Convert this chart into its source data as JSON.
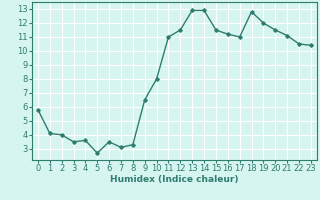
{
  "x": [
    0,
    1,
    2,
    3,
    4,
    5,
    6,
    7,
    8,
    9,
    10,
    11,
    12,
    13,
    14,
    15,
    16,
    17,
    18,
    19,
    20,
    21,
    22,
    23
  ],
  "y": [
    5.8,
    4.1,
    4.0,
    3.5,
    3.6,
    2.7,
    3.5,
    3.1,
    3.3,
    6.5,
    8.0,
    11.0,
    11.5,
    12.9,
    12.9,
    11.5,
    11.2,
    11.0,
    12.8,
    12.0,
    11.5,
    11.1,
    10.5,
    10.4
  ],
  "line_color": "#2e7d6e",
  "marker": "D",
  "marker_size": 1.8,
  "bg_color": "#d6f5f0",
  "grid_color": "#ffffff",
  "xlabel": "Humidex (Indice chaleur)",
  "xlim": [
    -0.5,
    23.5
  ],
  "ylim": [
    2.2,
    13.5
  ],
  "yticks": [
    3,
    4,
    5,
    6,
    7,
    8,
    9,
    10,
    11,
    12,
    13
  ],
  "xticks": [
    0,
    1,
    2,
    3,
    4,
    5,
    6,
    7,
    8,
    9,
    10,
    11,
    12,
    13,
    14,
    15,
    16,
    17,
    18,
    19,
    20,
    21,
    22,
    23
  ],
  "line_width": 1.0,
  "xlabel_fontsize": 6.5,
  "tick_fontsize": 6.0
}
